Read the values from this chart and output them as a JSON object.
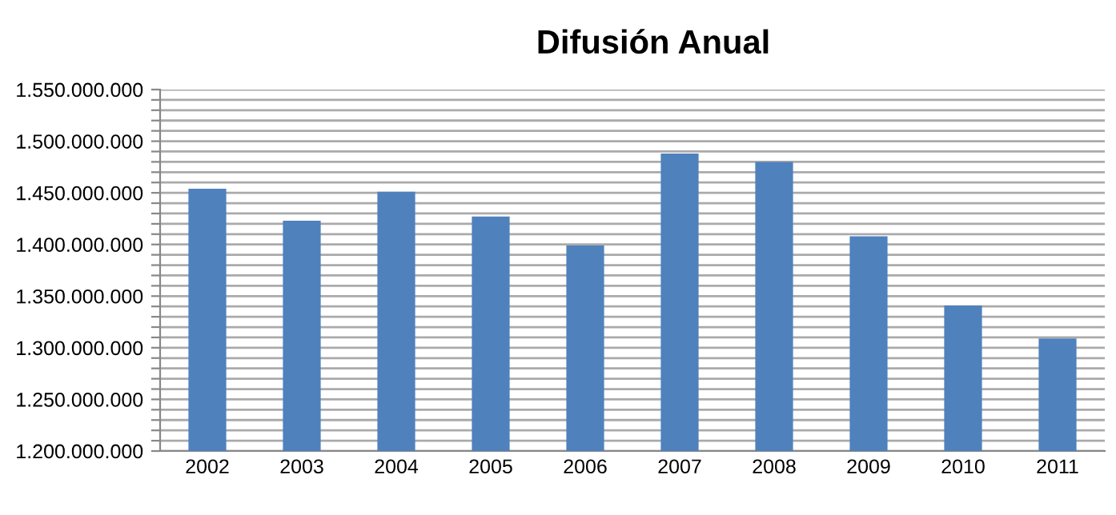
{
  "chart_data": {
    "type": "bar",
    "title": "Difusión Anual",
    "categories": [
      "2002",
      "2003",
      "2004",
      "2005",
      "2006",
      "2007",
      "2008",
      "2009",
      "2010",
      "2011"
    ],
    "series": [
      {
        "color": "#4f81bd",
        "values": [
          1454000000,
          1423000000,
          1451000000,
          1427000000,
          1399000000,
          1488000000,
          1480000000,
          1408000000,
          1341000000,
          1309000000
        ]
      }
    ],
    "ylim": [
      1200000000,
      1550000000
    ],
    "yticks": [
      {
        "value": 1200000000,
        "label": "1.200.000.000"
      },
      {
        "value": 1210000000,
        "label": null
      },
      {
        "value": 1220000000,
        "label": null
      },
      {
        "value": 1230000000,
        "label": null
      },
      {
        "value": 1240000000,
        "label": null
      },
      {
        "value": 1250000000,
        "label": "1.250.000.000"
      },
      {
        "value": 1260000000,
        "label": null
      },
      {
        "value": 1270000000,
        "label": null
      },
      {
        "value": 1280000000,
        "label": null
      },
      {
        "value": 1290000000,
        "label": null
      },
      {
        "value": 1300000000,
        "label": "1.300.000.000"
      },
      {
        "value": 1310000000,
        "label": null
      },
      {
        "value": 1320000000,
        "label": null
      },
      {
        "value": 1330000000,
        "label": null
      },
      {
        "value": 1340000000,
        "label": null
      },
      {
        "value": 1350000000,
        "label": "1.350.000.000"
      },
      {
        "value": 1360000000,
        "label": null
      },
      {
        "value": 1370000000,
        "label": null
      },
      {
        "value": 1380000000,
        "label": null
      },
      {
        "value": 1390000000,
        "label": null
      },
      {
        "value": 1400000000,
        "label": "1.400.000.000"
      },
      {
        "value": 1410000000,
        "label": null
      },
      {
        "value": 1420000000,
        "label": null
      },
      {
        "value": 1430000000,
        "label": null
      },
      {
        "value": 1440000000,
        "label": null
      },
      {
        "value": 1450000000,
        "label": "1.450.000.000"
      },
      {
        "value": 1460000000,
        "label": null
      },
      {
        "value": 1470000000,
        "label": null
      },
      {
        "value": 1480000000,
        "label": null
      },
      {
        "value": 1490000000,
        "label": null
      },
      {
        "value": 1500000000,
        "label": "1.500.000.000"
      },
      {
        "value": 1510000000,
        "label": null
      },
      {
        "value": 1520000000,
        "label": null
      },
      {
        "value": 1530000000,
        "label": null
      },
      {
        "value": 1540000000,
        "label": null
      },
      {
        "value": 1550000000,
        "label": "1.550.000.000"
      }
    ],
    "grid": "y"
  }
}
